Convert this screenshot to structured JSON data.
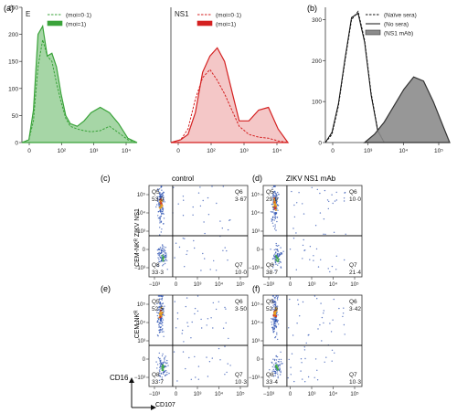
{
  "figure": {
    "panel_a_label": "(a)",
    "panel_b_label": "(b)",
    "panel_c_label": "(c)",
    "panel_d_label": "(d)",
    "panel_e_label": "(e)",
    "panel_f_label": "(f)",
    "control_title": "control",
    "zikv_title": "ZIKV NS1 mAb",
    "ylabel_top": "CEM-NKᴿ ZIKV NS1",
    "ylabel_bottom": "CEM-NKᴿ",
    "axis_cd16": "CD16",
    "axis_cd107": "CD107"
  },
  "colors": {
    "green": "#3aa33a",
    "red": "#d42020",
    "gray": "#8c8c8c",
    "black": "#111111",
    "dot_blue": "#2a4fb0",
    "dot_hot": "#e8a020"
  },
  "chart_data": [
    {
      "type": "area",
      "panel": "a-left",
      "title": "E",
      "x_ticks": [
        "0",
        "10²",
        "10³",
        "10⁴"
      ],
      "y_ticks": [
        "0",
        "50",
        "100",
        "150",
        "200",
        "250"
      ],
      "ylim": [
        0,
        250
      ],
      "series": [
        {
          "name": "(moi=0·1)",
          "style": "dashed",
          "x": [
            0,
            15,
            25,
            35,
            45,
            55,
            65,
            75,
            85,
            95,
            105,
            120,
            135,
            150,
            170,
            190,
            210,
            230,
            250
          ],
          "values": [
            0,
            5,
            40,
            140,
            190,
            160,
            150,
            110,
            75,
            45,
            30,
            25,
            22,
            20,
            22,
            30,
            18,
            5,
            0
          ]
        },
        {
          "name": "(moi=1)",
          "style": "filled",
          "x": [
            0,
            15,
            25,
            35,
            45,
            55,
            65,
            75,
            85,
            95,
            105,
            120,
            135,
            150,
            170,
            190,
            210,
            230,
            250
          ],
          "values": [
            0,
            5,
            60,
            200,
            215,
            160,
            165,
            140,
            90,
            50,
            35,
            30,
            40,
            55,
            65,
            55,
            35,
            8,
            0
          ]
        }
      ]
    },
    {
      "type": "area",
      "panel": "a-right",
      "title": "NS1",
      "x_ticks": [
        "0",
        "10²",
        "10³",
        "10⁴"
      ],
      "ylim": [
        0,
        250
      ],
      "series": [
        {
          "name": "(moi=0·1)",
          "style": "dashed",
          "x": [
            0,
            20,
            35,
            50,
            65,
            80,
            95,
            110,
            125,
            140,
            160,
            180,
            200,
            220,
            240
          ],
          "values": [
            0,
            5,
            25,
            80,
            120,
            135,
            115,
            90,
            60,
            30,
            15,
            10,
            8,
            3,
            0
          ]
        },
        {
          "name": "(moi=1)",
          "style": "filled",
          "x": [
            0,
            20,
            35,
            50,
            65,
            80,
            95,
            110,
            125,
            140,
            160,
            180,
            200,
            220,
            240
          ],
          "values": [
            0,
            5,
            15,
            55,
            130,
            160,
            175,
            150,
            95,
            40,
            40,
            60,
            65,
            25,
            0
          ]
        }
      ]
    },
    {
      "type": "area",
      "panel": "b",
      "x_ticks": [
        "0",
        "10³",
        "10⁴",
        "10⁵"
      ],
      "y_ticks": [
        "0",
        "100",
        "200",
        "300"
      ],
      "ylim": [
        0,
        330
      ],
      "series": [
        {
          "name": "(Naïve sera)",
          "style": "dashed",
          "x": [
            0,
            10,
            20,
            30,
            40,
            50,
            60,
            70,
            80,
            90
          ],
          "values": [
            0,
            20,
            90,
            200,
            300,
            320,
            250,
            120,
            30,
            0
          ]
        },
        {
          "name": "(No sera)",
          "style": "solid",
          "x": [
            0,
            10,
            20,
            30,
            40,
            50,
            60,
            70,
            80,
            90
          ],
          "values": [
            0,
            25,
            95,
            205,
            305,
            315,
            245,
            115,
            28,
            0
          ]
        },
        {
          "name": "(NS1 mAb)",
          "style": "filled",
          "x": [
            60,
            75,
            90,
            105,
            120,
            135,
            150,
            165,
            180,
            190
          ],
          "values": [
            0,
            20,
            50,
            90,
            130,
            160,
            150,
            100,
            40,
            0
          ]
        }
      ]
    },
    {
      "type": "scatter",
      "panel": "c",
      "title": "control",
      "y_ticks": [
        "10⁵",
        "10⁴",
        "10³",
        "0",
        "−10³"
      ],
      "x_ticks": [
        "−10³",
        "0",
        "10³",
        "10⁴",
        "10⁵"
      ],
      "quadrants": [
        {
          "label": "Q5",
          "value": "53·0"
        },
        {
          "label": "Q6",
          "value": "3·67"
        },
        {
          "label": "Q8",
          "value": "33·3"
        },
        {
          "label": "Q7",
          "value": "10·0"
        }
      ]
    },
    {
      "type": "scatter",
      "panel": "d",
      "title": "ZIKV NS1 mAb",
      "y_ticks": [
        "10⁵",
        "10⁴",
        "10³",
        "0",
        "−10³"
      ],
      "x_ticks": [
        "−10³",
        "0",
        "10³",
        "10⁴",
        "10⁵"
      ],
      "quadrants": [
        {
          "label": "Q5",
          "value": "29·9"
        },
        {
          "label": "Q6",
          "value": "10·0"
        },
        {
          "label": "Q8",
          "value": "38·7"
        },
        {
          "label": "Q7",
          "value": "21·4"
        }
      ]
    },
    {
      "type": "scatter",
      "panel": "e",
      "y_ticks": [
        "10⁵",
        "10⁴",
        "10³",
        "0",
        "−10³"
      ],
      "x_ticks": [
        "−10³",
        "0",
        "10³",
        "10⁴",
        "10⁵"
      ],
      "quadrants": [
        {
          "label": "Q5",
          "value": "52·5"
        },
        {
          "label": "Q6",
          "value": "3·50"
        },
        {
          "label": "Q8",
          "value": "33·7"
        },
        {
          "label": "Q7",
          "value": "10·3"
        }
      ]
    },
    {
      "type": "scatter",
      "panel": "f",
      "y_ticks": [
        "10⁵",
        "10⁴",
        "10³",
        "0",
        "−10³"
      ],
      "x_ticks": [
        "−10³",
        "0",
        "10³",
        "10⁴",
        "10⁵"
      ],
      "quadrants": [
        {
          "label": "Q5",
          "value": "52·9"
        },
        {
          "label": "Q6",
          "value": "3·42"
        },
        {
          "label": "Q8",
          "value": "33·4"
        },
        {
          "label": "Q7",
          "value": "10·3"
        }
      ]
    }
  ]
}
